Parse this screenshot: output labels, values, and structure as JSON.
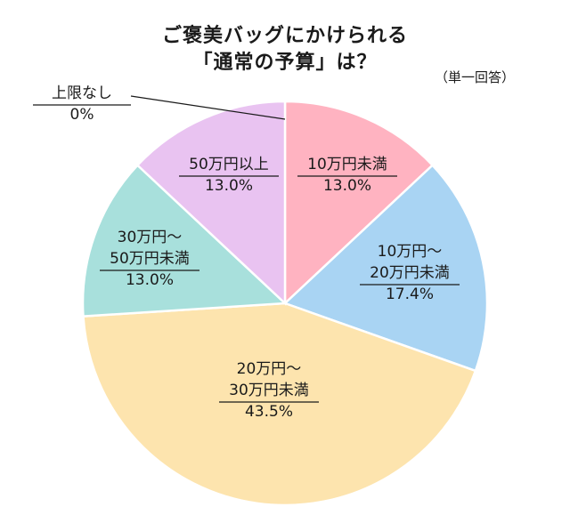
{
  "chart_data": {
    "type": "pie",
    "title_lines": [
      "ご褒美バッグにかけられる",
      "「通常の予算」は？"
    ],
    "subtitle": "（単一回答）",
    "slices": [
      {
        "label_lines": [
          "10万円未満"
        ],
        "value": 13.0,
        "value_label": "13.0%",
        "color": "#ffb3c1"
      },
      {
        "label_lines": [
          "10万円〜",
          "20万円未満"
        ],
        "value": 17.4,
        "value_label": "17.4%",
        "color": "#a9d4f3"
      },
      {
        "label_lines": [
          "20万円〜",
          "30万円未満"
        ],
        "value": 43.5,
        "value_label": "43.5%",
        "color": "#fde4ae"
      },
      {
        "label_lines": [
          "30万円〜",
          "50万円未満"
        ],
        "value": 13.0,
        "value_label": "13.0%",
        "color": "#a8e0dc"
      },
      {
        "label_lines": [
          "50万円以上"
        ],
        "value": 13.0,
        "value_label": "13.0%",
        "color": "#e9c3f1"
      },
      {
        "label_lines": [
          "上限なし"
        ],
        "value": 0,
        "value_label": "0%",
        "color": "#cccccc"
      }
    ]
  }
}
